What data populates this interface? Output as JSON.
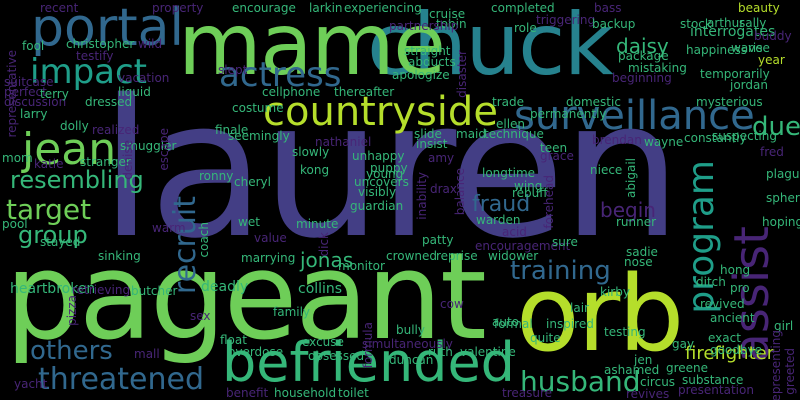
{
  "palette": {
    "background": "#000000",
    "purple": "#433e85",
    "darkpurple": "#482576",
    "teal": "#1f9e89",
    "tealblue": "#26828e",
    "blue": "#31688e",
    "green": "#6ece58",
    "lightgreen": "#b5de2b",
    "mint": "#35b779"
  },
  "words": [
    {
      "text": "lauren",
      "color": "purple"
    },
    {
      "text": "pageant",
      "color": "green"
    },
    {
      "text": "chuck",
      "color": "tealblue"
    },
    {
      "text": "mame",
      "color": "green"
    },
    {
      "text": "orb",
      "color": "lightgreen"
    },
    {
      "text": "befriended",
      "color": "mint"
    },
    {
      "text": "countryside",
      "color": "lightgreen"
    },
    {
      "text": "surveillance",
      "color": "blue"
    },
    {
      "text": "portal",
      "color": "blue"
    },
    {
      "text": "impact",
      "color": "teal"
    },
    {
      "text": "actress",
      "color": "blue"
    },
    {
      "text": "jean",
      "color": "green"
    },
    {
      "text": "recruit",
      "color": "blue"
    },
    {
      "text": "assist",
      "color": "darkpurple"
    },
    {
      "text": "training",
      "color": "blue"
    },
    {
      "text": "program",
      "color": "teal"
    },
    {
      "text": "threatened",
      "color": "blue"
    },
    {
      "text": "husband",
      "color": "mint"
    },
    {
      "text": "target",
      "color": "green"
    },
    {
      "text": "others",
      "color": "blue"
    },
    {
      "text": "group",
      "color": "mint"
    },
    {
      "text": "resembling",
      "color": "mint"
    },
    {
      "text": "fraud",
      "color": "blue"
    },
    {
      "text": "due",
      "color": "mint"
    },
    {
      "text": "begin",
      "color": "darkpurple"
    },
    {
      "text": "daisy",
      "color": "mint"
    },
    {
      "text": "jonas",
      "color": "mint"
    },
    {
      "text": "firefighter",
      "color": "lightgreen"
    },
    {
      "text": "heartbroken",
      "color": "mint"
    },
    {
      "text": "collins",
      "color": "mint"
    },
    {
      "text": "deadly",
      "color": "mint"
    },
    {
      "text": "butcher",
      "color": "mint"
    },
    {
      "text": "interrogates",
      "color": "mint"
    },
    {
      "text": "rise",
      "color": "mint"
    },
    {
      "text": "teen",
      "color": "mint"
    },
    {
      "text": "stock",
      "color": "mint"
    },
    {
      "text": "recent",
      "color": "darkpurple"
    },
    {
      "text": "encourage",
      "color": "mint"
    },
    {
      "text": "larkin",
      "color": "mint"
    },
    {
      "text": "experiencing",
      "color": "mint"
    },
    {
      "text": "cruise",
      "color": "mint"
    },
    {
      "text": "completed",
      "color": "mint"
    },
    {
      "text": "bass",
      "color": "darkpurple"
    },
    {
      "text": "beauty",
      "color": "lightgreen"
    },
    {
      "text": "tobin",
      "color": "mint"
    },
    {
      "text": "partnership",
      "color": "darkpurple"
    },
    {
      "text": "triggering",
      "color": "darkpurple"
    },
    {
      "text": "backup",
      "color": "mint"
    },
    {
      "text": "arthur",
      "color": "mint"
    },
    {
      "text": "sally",
      "color": "mint"
    },
    {
      "text": "buddy",
      "color": "darkpurple"
    },
    {
      "text": "wave",
      "color": "mint"
    },
    {
      "text": "fool",
      "color": "mint"
    },
    {
      "text": "christopher",
      "color": "mint"
    },
    {
      "text": "wild",
      "color": "darkpurple"
    },
    {
      "text": "testify",
      "color": "darkpurple"
    },
    {
      "text": "vacation",
      "color": "darkpurple"
    },
    {
      "text": "role",
      "color": "mint"
    },
    {
      "text": "straight",
      "color": "mint"
    },
    {
      "text": "abducts",
      "color": "mint"
    },
    {
      "text": "apologize",
      "color": "mint"
    },
    {
      "text": "mistaking",
      "color": "mint"
    },
    {
      "text": "package",
      "color": "mint"
    },
    {
      "text": "happiness",
      "color": "mint"
    },
    {
      "text": "year",
      "color": "lightgreen"
    },
    {
      "text": "temporarily",
      "color": "mint"
    },
    {
      "text": "beginning",
      "color": "darkpurple"
    },
    {
      "text": "jordan",
      "color": "mint"
    },
    {
      "text": "perfect",
      "color": "darkpurple"
    },
    {
      "text": "discussion",
      "color": "darkpurple"
    },
    {
      "text": "suitcase",
      "color": "darkpurple"
    },
    {
      "text": "larry",
      "color": "mint"
    },
    {
      "text": "terry",
      "color": "mint"
    },
    {
      "text": "dressed",
      "color": "mint"
    },
    {
      "text": "dolly",
      "color": "mint"
    },
    {
      "text": "liquid",
      "color": "mint"
    },
    {
      "text": "realized",
      "color": "darkpurple"
    },
    {
      "text": "cellphone",
      "color": "mint"
    },
    {
      "text": "thereafter",
      "color": "mint"
    },
    {
      "text": "trade",
      "color": "mint"
    },
    {
      "text": "domestic",
      "color": "mint"
    },
    {
      "text": "permanently",
      "color": "mint"
    },
    {
      "text": "ellen",
      "color": "mint"
    },
    {
      "text": "costume",
      "color": "mint"
    },
    {
      "text": "finale",
      "color": "mint"
    },
    {
      "text": "seemingly",
      "color": "mint"
    },
    {
      "text": "maid",
      "color": "mint"
    },
    {
      "text": "technique",
      "color": "mint"
    },
    {
      "text": "brendan",
      "color": "darkpurple"
    },
    {
      "text": "wayne",
      "color": "mint"
    },
    {
      "text": "constantly",
      "color": "mint"
    },
    {
      "text": "mysterious",
      "color": "mint"
    },
    {
      "text": "suspecting",
      "color": "mint"
    },
    {
      "text": "fred",
      "color": "darkpurple"
    },
    {
      "text": "plague",
      "color": "mint"
    },
    {
      "text": "sphere",
      "color": "mint"
    },
    {
      "text": "hoping",
      "color": "mint"
    },
    {
      "text": "mom",
      "color": "mint"
    },
    {
      "text": "stranger",
      "color": "mint"
    },
    {
      "text": "smuggler",
      "color": "mint"
    },
    {
      "text": "escape",
      "color": "darkpurple"
    },
    {
      "text": "nathaniel",
      "color": "darkpurple"
    },
    {
      "text": "slowly",
      "color": "mint"
    },
    {
      "text": "kong",
      "color": "mint"
    },
    {
      "text": "unhappy",
      "color": "mint"
    },
    {
      "text": "puppy",
      "color": "mint"
    },
    {
      "text": "insist",
      "color": "mint"
    },
    {
      "text": "amy",
      "color": "darkpurple"
    },
    {
      "text": "slide",
      "color": "mint"
    },
    {
      "text": "grace",
      "color": "darkpurple"
    },
    {
      "text": "niece",
      "color": "mint"
    },
    {
      "text": "abigail",
      "color": "mint"
    },
    {
      "text": "longtime",
      "color": "mint"
    },
    {
      "text": "rebuff",
      "color": "mint"
    },
    {
      "text": "katie",
      "color": "darkpurple"
    },
    {
      "text": "ronny",
      "color": "mint"
    },
    {
      "text": "cheryl",
      "color": "mint"
    },
    {
      "text": "uncovers",
      "color": "mint"
    },
    {
      "text": "guardian",
      "color": "mint"
    },
    {
      "text": "wing",
      "color": "mint"
    },
    {
      "text": "warden",
      "color": "mint"
    },
    {
      "text": "forehead",
      "color": "darkpurple"
    },
    {
      "text": "balance",
      "color": "darkpurple"
    },
    {
      "text": "inability",
      "color": "darkpurple"
    },
    {
      "text": "pool",
      "color": "mint"
    },
    {
      "text": "stayed",
      "color": "mint"
    },
    {
      "text": "warm",
      "color": "darkpurple"
    },
    {
      "text": "wet",
      "color": "mint"
    },
    {
      "text": "value",
      "color": "darkpurple"
    },
    {
      "text": "minute",
      "color": "mint"
    },
    {
      "text": "dick",
      "color": "darkpurple"
    },
    {
      "text": "acid",
      "color": "darkpurple"
    },
    {
      "text": "encouragement",
      "color": "darkpurple"
    },
    {
      "text": "patty",
      "color": "mint"
    },
    {
      "text": "sure",
      "color": "mint"
    },
    {
      "text": "runner",
      "color": "mint"
    },
    {
      "text": "sinking",
      "color": "mint"
    },
    {
      "text": "marrying",
      "color": "mint"
    },
    {
      "text": "monitor",
      "color": "mint"
    },
    {
      "text": "crowned",
      "color": "mint"
    },
    {
      "text": "reprise",
      "color": "mint"
    },
    {
      "text": "widower",
      "color": "mint"
    },
    {
      "text": "sadie",
      "color": "mint"
    },
    {
      "text": "nose",
      "color": "mint"
    },
    {
      "text": "hong",
      "color": "mint"
    },
    {
      "text": "pro",
      "color": "mint"
    },
    {
      "text": "retrieving",
      "color": "darkpurple"
    },
    {
      "text": "pizza",
      "color": "darkpurple"
    },
    {
      "text": "ditch",
      "color": "mint"
    },
    {
      "text": "kirby",
      "color": "mint"
    },
    {
      "text": "revived",
      "color": "mint"
    },
    {
      "text": "ancient",
      "color": "mint"
    },
    {
      "text": "girl",
      "color": "mint"
    },
    {
      "text": "family",
      "color": "mint"
    },
    {
      "text": "excuse",
      "color": "mint"
    },
    {
      "text": "cow",
      "color": "darkpurple"
    },
    {
      "text": "formal",
      "color": "mint"
    },
    {
      "text": "inspired",
      "color": "mint"
    },
    {
      "text": "lair",
      "color": "mint"
    },
    {
      "text": "float",
      "color": "mint"
    },
    {
      "text": "sex",
      "color": "darkpurple"
    },
    {
      "text": "bully",
      "color": "mint"
    },
    {
      "text": "auto",
      "color": "mint"
    },
    {
      "text": "testing",
      "color": "mint"
    },
    {
      "text": "exact",
      "color": "mint"
    },
    {
      "text": "goodbye",
      "color": "mint"
    },
    {
      "text": "gay",
      "color": "mint"
    },
    {
      "text": "mall",
      "color": "darkpurple"
    },
    {
      "text": "overdose",
      "color": "mint"
    },
    {
      "text": "obsessed",
      "color": "mint"
    },
    {
      "text": "simultaneously",
      "color": "darkpurple"
    },
    {
      "text": "duncan",
      "color": "mint"
    },
    {
      "text": "ruth",
      "color": "mint"
    },
    {
      "text": "valentine",
      "color": "mint"
    },
    {
      "text": "quite",
      "color": "mint"
    },
    {
      "text": "greene",
      "color": "mint"
    },
    {
      "text": "substance",
      "color": "mint"
    },
    {
      "text": "yacht",
      "color": "darkpurple"
    },
    {
      "text": "benefit",
      "color": "darkpurple"
    },
    {
      "text": "household",
      "color": "mint"
    },
    {
      "text": "toilet",
      "color": "mint"
    },
    {
      "text": "treasure",
      "color": "darkpurple"
    },
    {
      "text": "ashamed",
      "color": "mint"
    },
    {
      "text": "circus",
      "color": "mint"
    },
    {
      "text": "revives",
      "color": "darkpurple"
    },
    {
      "text": "presentation",
      "color": "darkpurple"
    },
    {
      "text": "representing",
      "color": "darkpurple"
    },
    {
      "text": "greeted",
      "color": "darkpurple"
    },
    {
      "text": "jen",
      "color": "mint"
    },
    {
      "text": "representative",
      "color": "darkpurple"
    },
    {
      "text": "property",
      "color": "darkpurple"
    },
    {
      "text": "disaster",
      "color": "darkpurple"
    },
    {
      "text": "denise",
      "color": "darkpurple"
    },
    {
      "text": "slept",
      "color": "darkpurple"
    },
    {
      "text": "drax",
      "color": "darkpurple"
    },
    {
      "text": "formula",
      "color": "darkpurple"
    },
    {
      "text": "coach",
      "color": "mint"
    },
    {
      "text": "visibly",
      "color": "mint"
    },
    {
      "text": "young",
      "color": "mint"
    }
  ]
}
